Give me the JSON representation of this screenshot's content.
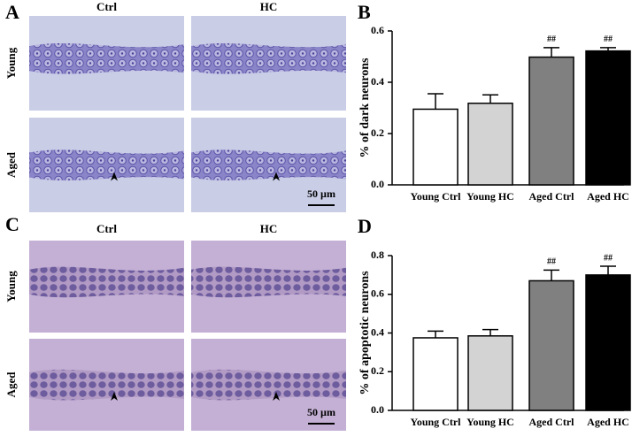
{
  "panel_labels": [
    "A",
    "B",
    "C",
    "D"
  ],
  "micrographs": [
    {
      "column_labels": [
        "Ctrl",
        "HC"
      ],
      "row_labels": [
        "Young",
        "Aged"
      ],
      "scale_bar": "50 µm"
    },
    {
      "column_labels": [
        "Ctrl",
        "HC"
      ],
      "row_labels": [
        "Young",
        "Aged"
      ],
      "scale_bar": "50 µm"
    }
  ],
  "chart_data": [
    {
      "type": "bar",
      "y_label": "% of dark neurons",
      "categories": [
        "Young Ctrl",
        "Young HC",
        "Aged Ctrl",
        "Aged HC"
      ],
      "values": [
        0.295,
        0.318,
        0.498,
        0.522
      ],
      "errors": [
        0.06,
        0.033,
        0.037,
        0.013
      ],
      "colors": [
        "#ffffff",
        "#d3d3d3",
        "#808080",
        "#000000"
      ],
      "significance": [
        null,
        null,
        "##",
        "##"
      ],
      "ylim": [
        0,
        0.6
      ],
      "yticks": [
        {
          "value": 0,
          "label": "0.0"
        },
        0.2,
        0.4,
        0.6
      ]
    },
    {
      "type": "bar",
      "y_label": "% of apoptotic neurons",
      "categories": [
        "Young Ctrl",
        "Young HC",
        "Aged Ctrl",
        "Aged HC"
      ],
      "values": [
        0.375,
        0.385,
        0.67,
        0.7
      ],
      "errors": [
        0.035,
        0.033,
        0.055,
        0.045
      ],
      "colors": [
        "#ffffff",
        "#d3d3d3",
        "#808080",
        "#000000"
      ],
      "significance": [
        null,
        null,
        "##",
        "##"
      ],
      "ylim": [
        0,
        0.8
      ],
      "yticks": [
        {
          "value": 0,
          "label": "0.0"
        },
        0.2,
        0.4,
        0.6,
        0.8
      ]
    }
  ]
}
